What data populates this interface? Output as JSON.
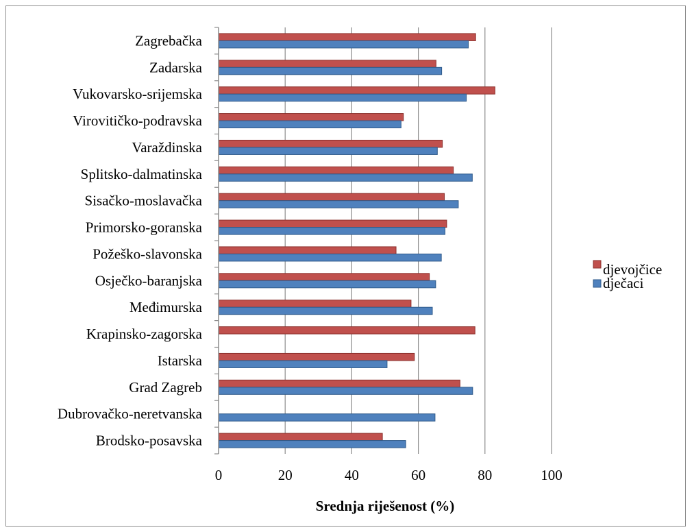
{
  "chart_data": {
    "type": "bar",
    "orientation": "horizontal",
    "title": "",
    "xlabel": "Srednja riješenost (%)",
    "ylabel": "",
    "xlim": [
      0,
      100
    ],
    "xticks": [
      0,
      20,
      40,
      60,
      80,
      100
    ],
    "grid": "vertical",
    "legend": "right",
    "categories": [
      "Zagrebačka",
      "Zadarska",
      "Vukovarsko-srijemska",
      "Virovitičko-podravska",
      "Varaždinska",
      "Splitsko-dalmatinska",
      "Sisačko-moslavačka",
      "Primorsko-goranska",
      "Požeško-slavonska",
      "Osječko-baranjska",
      "Međimurska",
      "Krapinsko-zagorska",
      "Istarska",
      "Grad Zagreb",
      "Dubrovačko-neretvanska",
      "Brodsko-posavska"
    ],
    "series": [
      {
        "name": "djevojčice",
        "color": "#c0504d",
        "values": [
          77.2,
          65.3,
          83.0,
          55.5,
          67.2,
          70.5,
          67.8,
          68.5,
          53.3,
          63.3,
          57.8,
          77.0,
          58.8,
          72.5,
          null,
          49.2
        ]
      },
      {
        "name": "dječaci",
        "color": "#4f81bd",
        "values": [
          75.0,
          67.0,
          74.4,
          54.8,
          65.7,
          76.2,
          72.0,
          68.0,
          66.9,
          65.2,
          64.2,
          null,
          50.6,
          76.3,
          65.0,
          56.2
        ]
      }
    ]
  }
}
